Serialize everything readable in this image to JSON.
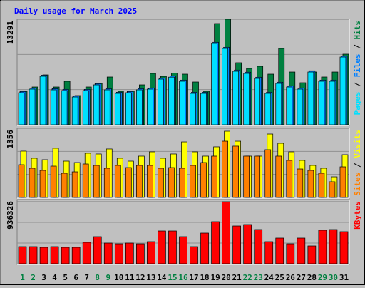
{
  "title": "Daily usage for March 2025",
  "chart_data": [
    {
      "type": "bar",
      "ylim": [
        0,
        13291
      ],
      "yticks": [
        13291
      ],
      "legend_separator": " / ",
      "series": [
        {
          "name": "Hits",
          "color": "#008040",
          "values": [
            4221,
            4759,
            6286,
            4759,
            5478,
            3682,
            4759,
            5208,
            6017,
            4221,
            4221,
            5029,
            6466,
            6100,
            6500,
            6376,
            5388,
            4221,
            12752,
            13291,
            7813,
            7094,
            7364,
            6376,
            9609,
            6645,
            5298,
            6645,
            6017,
            6645,
            8890
          ]
        },
        {
          "name": "Files",
          "color": "#0080ff",
          "values": [
            4190,
            4640,
            6250,
            4550,
            4460,
            3650,
            4460,
            5180,
            4550,
            4100,
            4190,
            4550,
            4640,
            5900,
            6150,
            5630,
            4100,
            4100,
            10390,
            9760,
            6890,
            6620,
            5990,
            4100,
            5360,
            4910,
            4640,
            6800,
            5630,
            5630,
            8680
          ]
        },
        {
          "name": "Pages",
          "color": "#00e0ff",
          "values": [
            4041,
            4490,
            6106,
            4400,
            4310,
            3502,
            4310,
            5029,
            4400,
            3951,
            4041,
            4400,
            4490,
            5747,
            6000,
            5478,
            3951,
            3951,
            10237,
            9609,
            6735,
            6466,
            5837,
            3951,
            5208,
            4759,
            4490,
            6645,
            5478,
            5478,
            8531
          ]
        }
      ]
    },
    {
      "type": "bar",
      "ylim": [
        0,
        1356
      ],
      "yticks": [
        1356
      ],
      "legend_separator": " / ",
      "series": [
        {
          "name": "Visits",
          "color": "#ffff00",
          "values": [
            909,
            769,
            741,
            965,
            713,
            685,
            867,
            853,
            951,
            769,
            713,
            811,
            895,
            769,
            853,
            1090,
            895,
            811,
            993,
            1300,
            1104,
            811,
            811,
            1244,
            1062,
            895,
            727,
            629,
            573,
            405,
            839
          ]
        },
        {
          "name": "Sites",
          "color": "#ff8000",
          "values": [
            643,
            573,
            531,
            615,
            475,
            503,
            657,
            629,
            573,
            629,
            587,
            629,
            629,
            573,
            587,
            573,
            629,
            685,
            811,
            1104,
            1007,
            811,
            811,
            937,
            811,
            727,
            559,
            531,
            475,
            308,
            601
          ]
        }
      ]
    },
    {
      "type": "bar",
      "ylim": [
        0,
        936326
      ],
      "yticks": [
        936326
      ],
      "legend_separator": " / ",
      "categories": [
        "1",
        "2",
        "3",
        "4",
        "5",
        "6",
        "7",
        "8",
        "9",
        "10",
        "11",
        "12",
        "13",
        "14",
        "15",
        "16",
        "17",
        "18",
        "19",
        "20",
        "21",
        "22",
        "23",
        "24",
        "25",
        "26",
        "27",
        "28",
        "29",
        "30",
        "31"
      ],
      "category_colors": [
        "#008040",
        "#008040",
        "#000000",
        "#000000",
        "#000000",
        "#000000",
        "#000000",
        "#008040",
        "#008040",
        "#000000",
        "#000000",
        "#000000",
        "#000000",
        "#000000",
        "#008040",
        "#008040",
        "#000000",
        "#000000",
        "#000000",
        "#000000",
        "#000000",
        "#008040",
        "#008040",
        "#000000",
        "#000000",
        "#000000",
        "#000000",
        "#000000",
        "#008040",
        "#008040",
        "#000000"
      ],
      "series": [
        {
          "name": "KBytes",
          "color": "#ff0000",
          "values": [
            258288,
            258288,
            247526,
            258288,
            247526,
            247526,
            322860,
            408956,
            312098,
            301336,
            312098,
            301336,
            333622,
            495052,
            495052,
            408956,
            258288,
            462766,
            634958,
            936326,
            570386,
            591910,
            516576,
            333622,
            387432,
            301336,
            387432,
            269050,
            505814,
            516576,
            484290
          ]
        }
      ]
    }
  ]
}
